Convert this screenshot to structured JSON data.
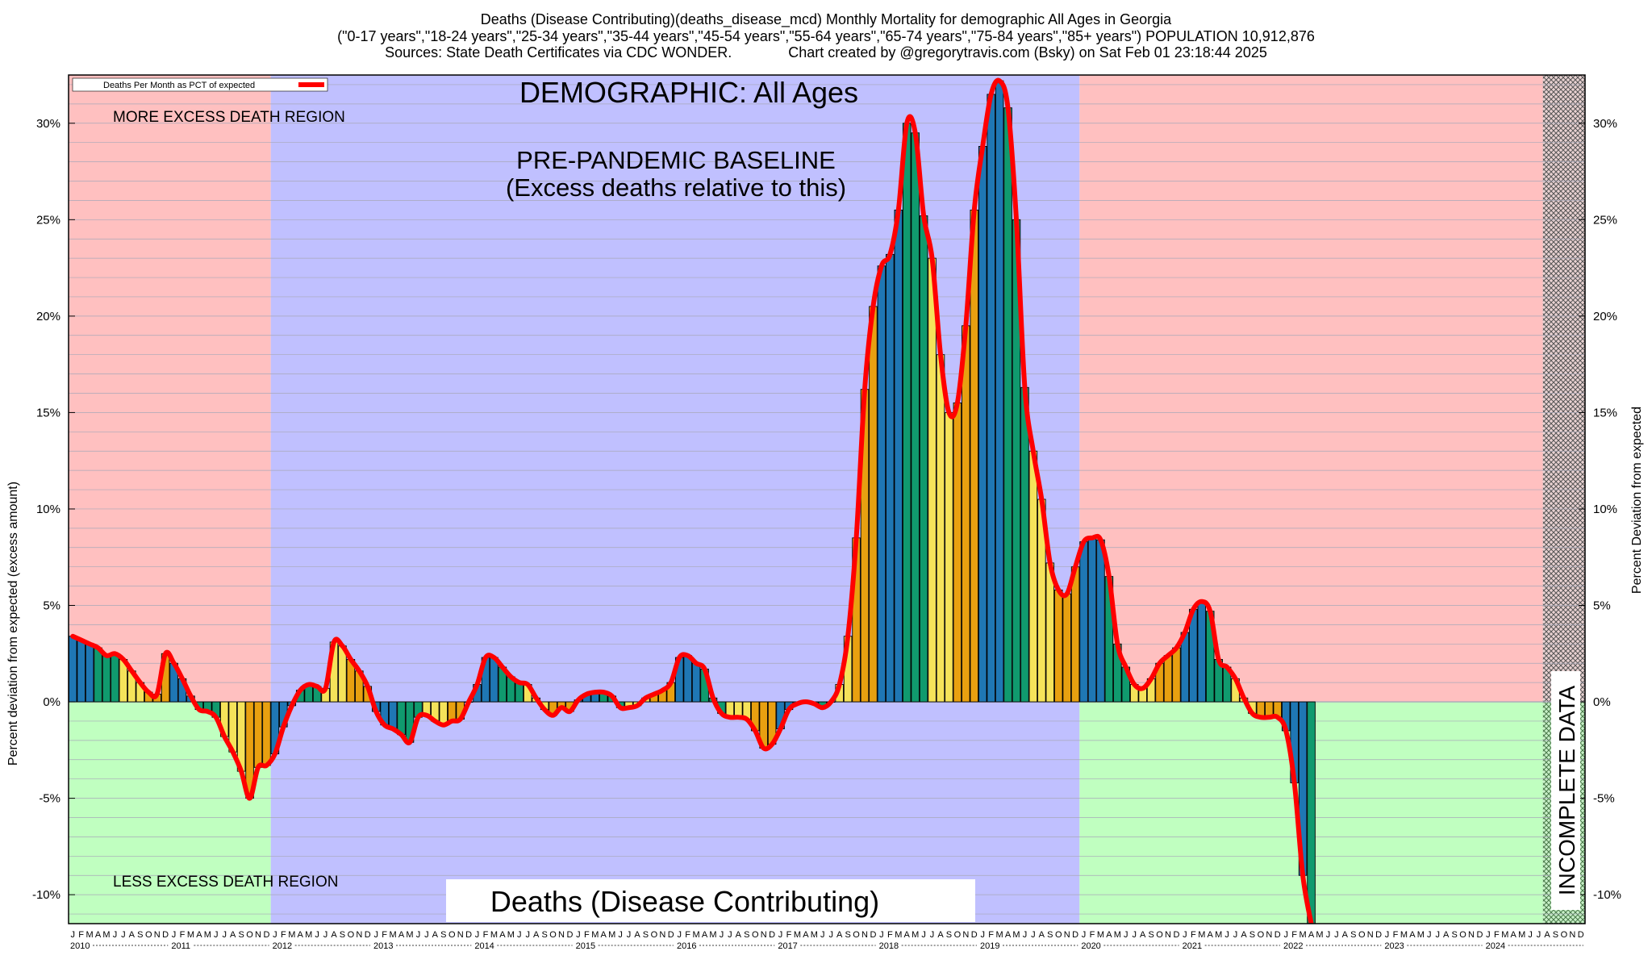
{
  "header": {
    "line1": "Deaths (Disease Contributing)(deaths_disease_mcd) Monthly Mortality for demographic All Ages in Georgia",
    "line2": "(\"0-17 years\",\"18-24 years\",\"25-34 years\",\"35-44 years\",\"45-54 years\",\"55-64 years\",\"65-74 years\",\"75-84 years\",\"85+ years\") POPULATION 10,912,876",
    "line3": "Sources: State Death Certificates via CDC WONDER.              Chart created by @gregorytravis.com (Bsky) on Sat Feb 01 23:18:44 2025"
  },
  "colors": {
    "excess_region": "#ffc0c0",
    "less_region": "#c0ffc0",
    "baseline_region": "#c0c0ff",
    "line": "#ff0000",
    "bar_cycle": [
      "#1f77b4",
      "#109a6e",
      "#f5e35a",
      "#e8a010"
    ]
  },
  "chart_data": {
    "type": "bar",
    "legend": {
      "label": "Deaths Per Month as PCT of expected",
      "position": "top-left"
    },
    "ylabel_left": "Percent deviation from expected (excess amount)",
    "ylabel_right": "Percent Deviation from expected",
    "ylim": [
      -11.5,
      32.5
    ],
    "yticks": [
      "30%",
      "25%",
      "20%",
      "15%",
      "10%",
      "5%",
      "0%",
      "-5%",
      "-10%"
    ],
    "ytick_values": [
      30,
      25,
      20,
      15,
      10,
      5,
      0,
      -5,
      -10
    ],
    "grid": "horizontal",
    "annotations": {
      "demographic": "DEMOGRAPHIC: All Ages",
      "baseline_title": "PRE-PANDEMIC BASELINE",
      "baseline_sub": "(Excess deaths relative to this)",
      "more_region": "MORE EXCESS DEATH REGION",
      "less_region": "LESS EXCESS DEATH REGION",
      "bottom_title": "Deaths (Disease Contributing)",
      "incomplete": "INCOMPLETE DATA"
    },
    "baseline_range": [
      "2012-01",
      "2019-12"
    ],
    "incomplete_from": "2024-08",
    "month_letters": [
      "J",
      "F",
      "M",
      "A",
      "M",
      "J",
      "J",
      "A",
      "S",
      "O",
      "N",
      "D"
    ],
    "years": [
      "2010",
      "2011",
      "2012",
      "2013",
      "2014",
      "2015",
      "2016",
      "2017",
      "2018",
      "2019",
      "2020",
      "2021",
      "2022",
      "2023",
      "2024"
    ],
    "start": "2010-01",
    "values": [
      3.4,
      3.2,
      3.0,
      2.8,
      2.4,
      2.5,
      2.2,
      1.6,
      1.0,
      0.5,
      0.4,
      2.5,
      2.0,
      1.2,
      0.3,
      -0.4,
      -0.5,
      -0.8,
      -1.8,
      -2.6,
      -3.6,
      -5.0,
      -3.4,
      -3.3,
      -2.7,
      -1.3,
      -0.2,
      0.6,
      0.9,
      0.8,
      0.7,
      3.1,
      2.9,
      2.2,
      1.6,
      0.8,
      -0.5,
      -1.2,
      -1.4,
      -1.7,
      -2.1,
      -0.8,
      -0.7,
      -1.0,
      -1.2,
      -1.0,
      -0.9,
      0.0,
      0.9,
      2.3,
      2.3,
      1.8,
      1.3,
      1.0,
      0.9,
      0.2,
      -0.4,
      -0.7,
      -0.3,
      -0.5,
      0.1,
      0.4,
      0.5,
      0.5,
      0.3,
      -0.3,
      -0.3,
      -0.2,
      0.2,
      0.4,
      0.6,
      1.0,
      2.3,
      2.4,
      2.0,
      1.7,
      0.2,
      -0.6,
      -0.8,
      -0.8,
      -0.9,
      -1.5,
      -2.4,
      -2.2,
      -1.4,
      -0.4,
      -0.1,
      0.0,
      -0.1,
      -0.3,
      0.0,
      0.9,
      3.4,
      8.5,
      16.2,
      20.5,
      22.6,
      23.2,
      25.5,
      30.0,
      29.5,
      25.2,
      23.0,
      18.0,
      15.0,
      15.5,
      19.5,
      25.5,
      28.8,
      31.5,
      32.2,
      30.8,
      25.0,
      16.3,
      13.0,
      10.5,
      7.2,
      5.8,
      5.6,
      7.0,
      8.3,
      8.5,
      8.4,
      6.5,
      3.0,
      1.8,
      0.9,
      0.7,
      1.2,
      2.0,
      2.4,
      2.8,
      3.6,
      4.8,
      5.2,
      4.7,
      2.2,
      1.8,
      1.2,
      0.2,
      -0.6,
      -0.8,
      -0.8,
      -0.8,
      -1.5,
      -4.2,
      -9.0,
      -11.5
    ]
  }
}
